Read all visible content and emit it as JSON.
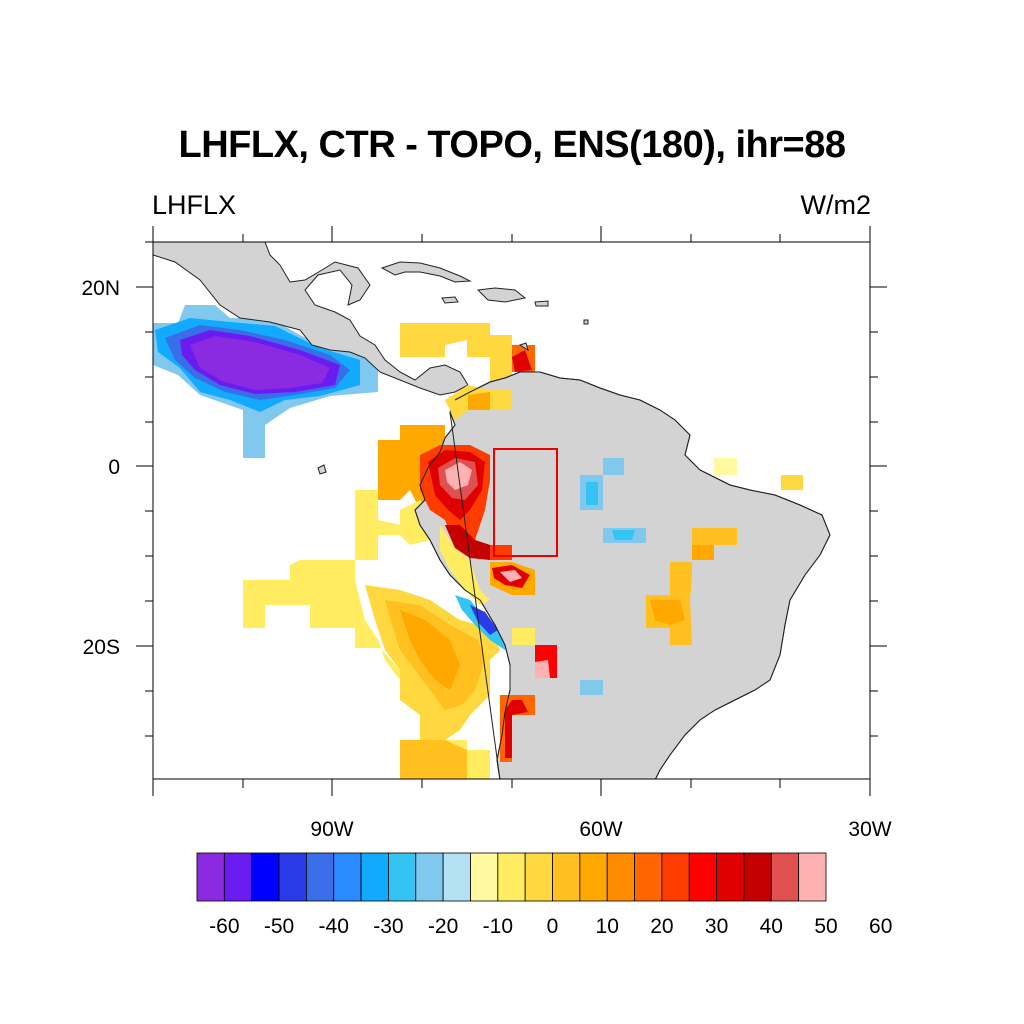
{
  "title": "LHFLX, CTR - TOPO, ENS(180), ihr=88",
  "left_subtitle": "LHFLX",
  "right_subtitle": "W/m2",
  "map": {
    "lon_range": [
      -110,
      -30
    ],
    "lat_range": [
      -35,
      25
    ],
    "lon_ticks": [
      {
        "value": -90,
        "label": "90W"
      },
      {
        "value": -60,
        "label": "60W"
      },
      {
        "value": -30,
        "label": "30W"
      }
    ],
    "lat_ticks": [
      {
        "value": 20,
        "label": "20N"
      },
      {
        "value": 0,
        "label": "0"
      },
      {
        "value": -20,
        "label": "20S"
      }
    ],
    "land_color": "#d3d3d3",
    "box": {
      "lon": [
        -72,
        -65
      ],
      "lat": [
        -10,
        2
      ],
      "color": "#ee0000"
    }
  },
  "colorbar": {
    "colors": [
      "#8a2be2",
      "#6a1cf0",
      "#0000ff",
      "#2a3ce8",
      "#3a6ee8",
      "#2a8aff",
      "#11aaff",
      "#33c4f4",
      "#80c8ee",
      "#b4e0f4",
      "#fff9a0",
      "#ffec60",
      "#ffd840",
      "#ffc020",
      "#ffa800",
      "#ff8c00",
      "#ff6600",
      "#ff3c00",
      "#ff0000",
      "#e00000",
      "#c40000",
      "#e05050",
      "#ffb0b0"
    ],
    "labels": [
      "-60",
      "-50",
      "-40",
      "-30",
      "-20",
      "-10",
      "0",
      "10",
      "20",
      "30",
      "40",
      "50",
      "60"
    ]
  }
}
